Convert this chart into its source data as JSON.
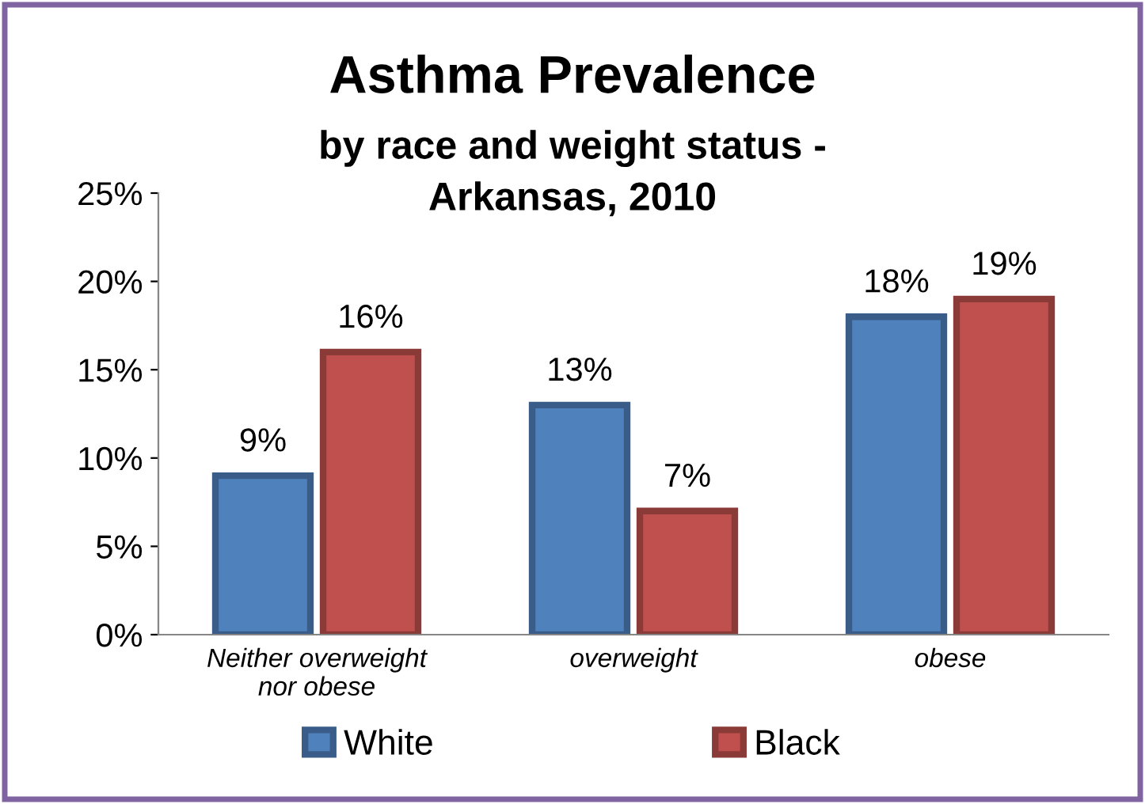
{
  "chart_data": {
    "type": "bar",
    "title": "Asthma Prevalence",
    "subtitle": "by race and weight status -\nArkansas, 2010",
    "categories": [
      "Neither overweight nor obese",
      "overweight",
      "obese"
    ],
    "series": [
      {
        "name": "White",
        "color": "#4f81bd",
        "values": [
          9,
          13,
          18
        ],
        "value_labels": [
          "9%",
          "13%",
          "18%"
        ]
      },
      {
        "name": "Black",
        "color": "#c0504d",
        "values": [
          16,
          7,
          19
        ],
        "value_labels": [
          "16%",
          "7%",
          "19%"
        ]
      }
    ],
    "ylim": [
      0,
      25
    ],
    "yticks": [
      {
        "value": 0,
        "label": "0%"
      },
      {
        "value": 5,
        "label": "5%"
      },
      {
        "value": 10,
        "label": "10%"
      },
      {
        "value": 15,
        "label": "15%"
      },
      {
        "value": 20,
        "label": "20%"
      },
      {
        "value": 25,
        "label": "25%"
      }
    ],
    "grid": false,
    "legend": "bottom"
  }
}
